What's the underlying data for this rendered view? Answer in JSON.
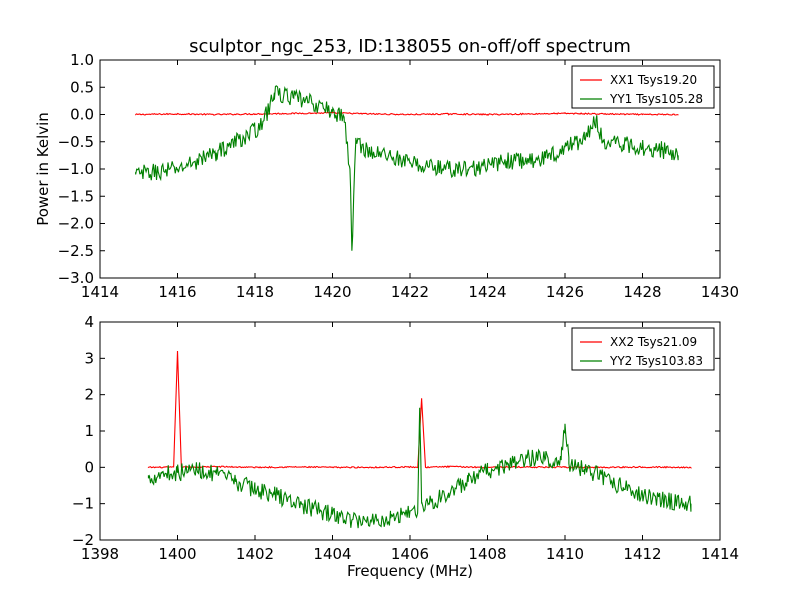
{
  "figure": {
    "title": "sculptor_ngc_253, ID:138055 on-off/off spectrum"
  },
  "colors": {
    "xx": "#ff0000",
    "yy": "#008000",
    "axes": "#000000",
    "background": "#ffffff"
  },
  "chart_data": [
    {
      "type": "line",
      "title": "sculptor_ngc_253, ID:138055 on-off/off spectrum",
      "xlabel": "",
      "ylabel": "Power in Kelvin",
      "xlim": [
        1414,
        1430
      ],
      "ylim": [
        -3.0,
        1.0
      ],
      "xticks": [
        1414,
        1416,
        1418,
        1420,
        1422,
        1424,
        1426,
        1428,
        1430
      ],
      "yticks": [
        -3.0,
        -2.5,
        -2.0,
        -1.5,
        -1.0,
        -0.5,
        0.0,
        0.5,
        1.0
      ],
      "ytick_labels": [
        "−3.0",
        "−2.5",
        "−2.0",
        "−1.5",
        "−1.0",
        "−0.5",
        "0.0",
        "0.5",
        "1.0"
      ],
      "grid": false,
      "legend_position": "top-right",
      "series": [
        {
          "name": "XX1 Tsys19.20",
          "color": "#ff0000",
          "x": [
            1414.92,
            1416.0,
            1417.0,
            1418.0,
            1419.0,
            1420.0,
            1421.0,
            1422.0,
            1423.0,
            1424.0,
            1425.0,
            1426.0,
            1427.0,
            1428.0,
            1428.92
          ],
          "y": [
            0.0,
            0.01,
            0.0,
            0.01,
            0.02,
            0.03,
            0.01,
            0.0,
            0.01,
            0.0,
            0.01,
            0.02,
            0.01,
            0.0,
            0.0
          ]
        },
        {
          "name": "YY1 Tsys105.28",
          "color": "#008000",
          "x": [
            1414.92,
            1415.5,
            1416.0,
            1416.5,
            1417.0,
            1417.5,
            1418.0,
            1418.3,
            1418.5,
            1419.0,
            1419.5,
            1420.0,
            1420.3,
            1420.45,
            1420.5,
            1420.6,
            1421.0,
            1421.5,
            1422.0,
            1422.5,
            1423.0,
            1423.5,
            1424.0,
            1424.5,
            1425.0,
            1425.5,
            1426.0,
            1426.5,
            1426.8,
            1427.0,
            1427.5,
            1428.0,
            1428.5,
            1428.92
          ],
          "y": [
            -1.1,
            -1.05,
            -1.0,
            -0.85,
            -0.7,
            -0.5,
            -0.3,
            0.0,
            0.4,
            0.3,
            0.2,
            0.05,
            -0.05,
            -1.0,
            -2.5,
            -0.5,
            -0.7,
            -0.75,
            -0.9,
            -0.95,
            -1.0,
            -1.0,
            -0.95,
            -0.85,
            -0.85,
            -0.8,
            -0.6,
            -0.45,
            -0.1,
            -0.5,
            -0.55,
            -0.6,
            -0.65,
            -0.75
          ]
        }
      ]
    },
    {
      "type": "line",
      "title": "",
      "xlabel": "Frequency (MHz)",
      "ylabel": "",
      "xlim": [
        1398,
        1414
      ],
      "ylim": [
        -2,
        4
      ],
      "xticks": [
        1398,
        1400,
        1402,
        1404,
        1406,
        1408,
        1410,
        1412,
        1414
      ],
      "yticks": [
        -2,
        -1,
        0,
        1,
        2,
        3,
        4
      ],
      "ytick_labels": [
        "−2",
        "−1",
        "0",
        "1",
        "2",
        "3",
        "4"
      ],
      "grid": false,
      "legend_position": "top-right",
      "series": [
        {
          "name": "XX2 Tsys21.09",
          "color": "#ff0000",
          "x": [
            1399.25,
            1399.9,
            1400.0,
            1400.1,
            1401.0,
            1402.0,
            1403.0,
            1404.0,
            1405.0,
            1406.0,
            1406.2,
            1406.3,
            1406.4,
            1407.0,
            1408.0,
            1409.0,
            1410.0,
            1411.0,
            1412.0,
            1413.0,
            1413.25
          ],
          "y": [
            0.0,
            0.0,
            3.2,
            0.0,
            0.02,
            0.0,
            0.01,
            0.0,
            0.0,
            0.01,
            0.0,
            1.9,
            0.0,
            0.02,
            0.0,
            0.01,
            0.0,
            0.0,
            0.01,
            0.0,
            0.0
          ]
        },
        {
          "name": "YY2 Tsys103.83",
          "color": "#008000",
          "x": [
            1399.25,
            1399.6,
            1400.0,
            1400.5,
            1401.0,
            1401.5,
            1402.0,
            1402.5,
            1403.0,
            1403.5,
            1404.0,
            1404.5,
            1405.0,
            1405.5,
            1406.0,
            1406.2,
            1406.25,
            1406.3,
            1406.5,
            1407.0,
            1407.5,
            1408.0,
            1408.5,
            1409.0,
            1409.5,
            1409.9,
            1410.0,
            1410.1,
            1410.5,
            1411.0,
            1411.5,
            1412.0,
            1412.5,
            1413.0,
            1413.25
          ],
          "y": [
            -0.3,
            -0.15,
            -0.15,
            -0.05,
            -0.2,
            -0.4,
            -0.6,
            -0.75,
            -0.95,
            -1.15,
            -1.3,
            -1.45,
            -1.45,
            -1.4,
            -1.2,
            -1.15,
            1.5,
            -1.0,
            -1.0,
            -0.7,
            -0.4,
            -0.1,
            0.05,
            0.25,
            0.25,
            0.2,
            1.2,
            0.1,
            -0.05,
            -0.3,
            -0.55,
            -0.75,
            -0.9,
            -0.95,
            -1.0
          ]
        }
      ]
    }
  ]
}
